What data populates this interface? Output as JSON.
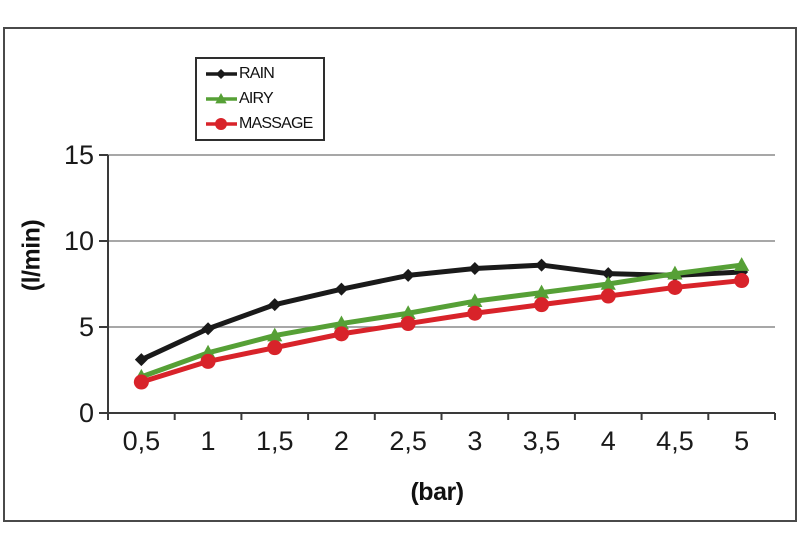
{
  "chart_data": {
    "type": "line",
    "title": "",
    "xlabel": "(bar)",
    "ylabel": "(l/min)",
    "x_values": [
      0.5,
      1,
      1.5,
      2,
      2.5,
      3,
      3.5,
      4,
      4.5,
      5
    ],
    "x_tick_labels": [
      "0,5",
      "1",
      "1,5",
      "2",
      "2,5",
      "3",
      "3,5",
      "4",
      "4,5",
      "5"
    ],
    "y_ticks": [
      0,
      5,
      10,
      15
    ],
    "y_tick_labels": [
      "0",
      "5",
      "10",
      "15"
    ],
    "ylim": [
      0,
      15
    ],
    "grid": "horizontal",
    "legend_position": "top-left-inside",
    "series": [
      {
        "name": "RAIN",
        "color": "#1a1a1a",
        "marker": "diamond",
        "values": [
          3.1,
          4.9,
          6.3,
          7.2,
          8.0,
          8.4,
          8.6,
          8.1,
          8.0,
          8.2
        ]
      },
      {
        "name": "AIRY",
        "color": "#56a036",
        "marker": "triangle",
        "values": [
          2.1,
          3.5,
          4.5,
          5.2,
          5.8,
          6.5,
          7.0,
          7.5,
          8.1,
          8.6
        ]
      },
      {
        "name": "MASSAGE",
        "color": "#d8232a",
        "marker": "circle",
        "values": [
          1.8,
          3.0,
          3.8,
          4.6,
          5.2,
          5.8,
          6.3,
          6.8,
          7.3,
          7.7
        ]
      }
    ],
    "colors": {
      "gridline": "#8a8a8a",
      "axis": "#3a3a3a",
      "tick_text": "#1a1a1a",
      "frame_border": "#4a4a4a"
    }
  }
}
